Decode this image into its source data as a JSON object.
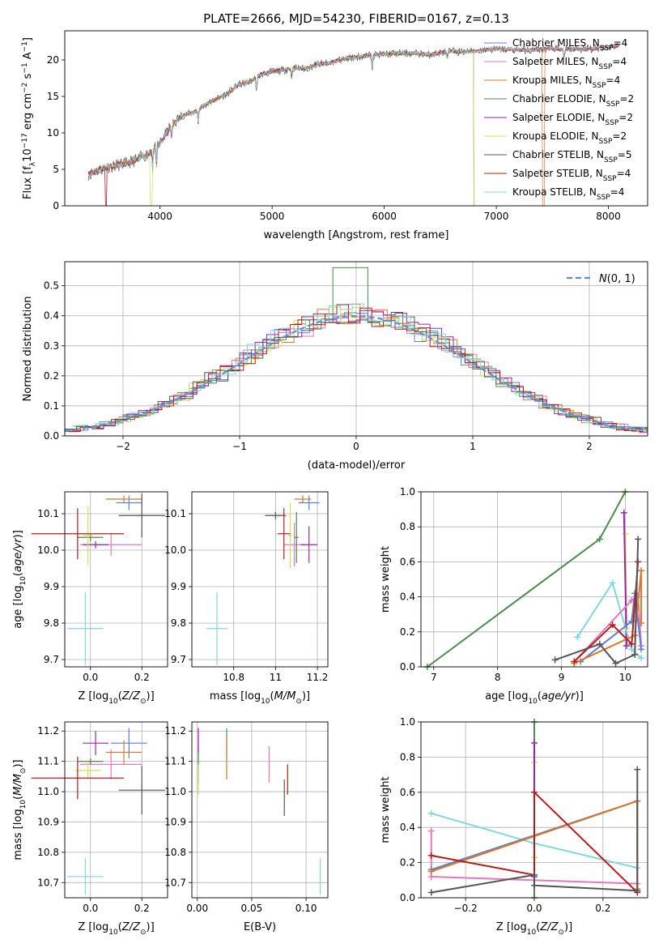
{
  "title": "PLATE=2666, MJD=54230, FIBERID=0167, z=0.13",
  "colors": {
    "chabrier_miles": "#5b7fd6",
    "salpeter_miles": "#e377c2",
    "kroupa_miles": "#d9782d",
    "chabrier_elodie": "#4e8a4e",
    "salpeter_elodie": "#9b27b0",
    "kroupa_elodie": "#d4e157",
    "chabrier_stelib": "#555555",
    "salpeter_stelib": "#b71c1c",
    "kroupa_stelib": "#7fd8e0",
    "normal": "#5b8fd6"
  },
  "chart_data": [
    {
      "id": "spectrum",
      "type": "line",
      "title": "PLATE=2666, MJD=54230, FIBERID=0167, z=0.13",
      "xlabel": "wavelength [Angstrom, rest frame]",
      "ylabel": "Flux [f_λ 10^-17 erg cm^-2 s^-1 A^-1]",
      "xlim": [
        3150,
        8350
      ],
      "ylim": [
        0,
        24
      ],
      "xticks": [
        4000,
        5000,
        6000,
        7000,
        8000
      ],
      "yticks": [
        0,
        5,
        10,
        15,
        20
      ],
      "legend_location": "right",
      "legend": [
        {
          "label": "Chabrier MILES, N",
          "sub": "SSP",
          "suffix": "=4",
          "color": "chabrier_miles"
        },
        {
          "label": "Salpeter MILES, N",
          "sub": "SSP",
          "suffix": "=4",
          "color": "salpeter_miles"
        },
        {
          "label": "Kroupa MILES, N",
          "sub": "SSP",
          "suffix": "=4",
          "color": "kroupa_miles"
        },
        {
          "label": "Chabrier ELODIE, N",
          "sub": "SSP",
          "suffix": "=2",
          "color": "chabrier_elodie"
        },
        {
          "label": "Salpeter ELODIE, N",
          "sub": "SSP",
          "suffix": "=2",
          "color": "salpeter_elodie"
        },
        {
          "label": "Kroupa ELODIE, N",
          "sub": "SSP",
          "suffix": "=2",
          "color": "kroupa_elodie"
        },
        {
          "label": "Chabrier STELIB, N",
          "sub": "SSP",
          "suffix": "=5",
          "color": "chabrier_stelib"
        },
        {
          "label": "Salpeter STELIB, N",
          "sub": "SSP",
          "suffix": "=4",
          "color": "salpeter_stelib"
        },
        {
          "label": "Kroupa STELIB, N",
          "sub": "SSP",
          "suffix": "=4",
          "color": "kroupa_stelib"
        }
      ],
      "continuum": [
        [
          3360,
          4.3
        ],
        [
          3500,
          5.2
        ],
        [
          3600,
          5.5
        ],
        [
          3700,
          5.8
        ],
        [
          3800,
          6.4
        ],
        [
          3900,
          7.2
        ],
        [
          4000,
          8.6
        ],
        [
          4100,
          11.0
        ],
        [
          4200,
          12.4
        ],
        [
          4300,
          12.8
        ],
        [
          4400,
          13.8
        ],
        [
          4500,
          14.6
        ],
        [
          4600,
          15.4
        ],
        [
          4700,
          16.6
        ],
        [
          4800,
          17.0
        ],
        [
          4900,
          18.0
        ],
        [
          5000,
          18.4
        ],
        [
          5100,
          18.6
        ],
        [
          5200,
          18.9
        ],
        [
          5300,
          18.8
        ],
        [
          5400,
          19.4
        ],
        [
          5500,
          19.5
        ],
        [
          5600,
          20.0
        ],
        [
          5700,
          20.3
        ],
        [
          5800,
          20.5
        ],
        [
          5900,
          20.7
        ],
        [
          6000,
          20.8
        ],
        [
          6100,
          20.9
        ],
        [
          6200,
          20.9
        ],
        [
          6300,
          20.9
        ],
        [
          6400,
          20.7
        ],
        [
          6500,
          21.0
        ],
        [
          6600,
          21.2
        ],
        [
          6700,
          21.1
        ],
        [
          6800,
          21.2
        ],
        [
          6900,
          21.4
        ],
        [
          7000,
          21.5
        ],
        [
          7100,
          21.4
        ],
        [
          7200,
          21.4
        ],
        [
          7300,
          21.3
        ],
        [
          7400,
          21.5
        ],
        [
          7500,
          21.6
        ],
        [
          7600,
          21.4
        ],
        [
          7700,
          21.5
        ],
        [
          7800,
          21.4
        ],
        [
          7900,
          21.6
        ],
        [
          8000,
          21.8
        ],
        [
          8100,
          22.0
        ]
      ],
      "truncations": {
        "salpeter_miles": 3520,
        "kroupa_miles": 7420,
        "kroupa_elodie": 3920,
        "salpeter_stelib": 3520
      }
    },
    {
      "id": "residuals",
      "type": "histogram",
      "xlabel": "(data-model)/error",
      "ylabel": "Normed distribution",
      "xlim": [
        -2.5,
        2.5
      ],
      "ylim": [
        0,
        0.58
      ],
      "xticks": [
        -2,
        -1,
        0,
        1,
        2
      ],
      "yticks": [
        0.0,
        0.1,
        0.2,
        0.3,
        0.4,
        0.5
      ],
      "grid": true,
      "legend": [
        {
          "label": "N(0, 1)",
          "color": "normal",
          "style": "dashed"
        }
      ],
      "legend_location": "top-right",
      "normal_curve": {
        "mean": 0,
        "sigma": 1
      }
    },
    {
      "id": "age_vs_z",
      "type": "errorbar",
      "xlabel": "Z [log10(Z/Z⊙)]",
      "ylabel": "age [log10(age/yr)]",
      "xlim": [
        -0.1,
        0.3
      ],
      "ylim": [
        9.68,
        10.16
      ],
      "xticks": [
        0.0,
        0.2
      ],
      "xtick_labels": [
        "0.0",
        "0.2"
      ],
      "yticks": [
        9.7,
        9.8,
        9.9,
        10.0,
        10.1
      ],
      "points": [
        {
          "s": "chabrier_miles",
          "x": 0.15,
          "y": 10.13,
          "ex": 0.05,
          "ey": 0.02
        },
        {
          "s": "salpeter_miles",
          "x": 0.08,
          "y": 10.015,
          "ex": 0.12,
          "ey": 0.03
        },
        {
          "s": "kroupa_miles",
          "x": 0.13,
          "y": 10.14,
          "ex": 0.07,
          "ey": 0.01
        },
        {
          "s": "chabrier_elodie",
          "x": 0.0,
          "y": 10.035,
          "ex": 0.05,
          "ey": 0.01
        },
        {
          "s": "salpeter_elodie",
          "x": 0.02,
          "y": 10.015,
          "ex": 0.05,
          "ey": 0.01
        },
        {
          "s": "kroupa_elodie",
          "x": -0.01,
          "y": 10.04,
          "ex": 0.02,
          "ey": 0.08
        },
        {
          "s": "chabrier_stelib",
          "x": 0.2,
          "y": 10.095,
          "ex": 0.09,
          "ey": 0.06
        },
        {
          "s": "salpeter_stelib",
          "x": -0.05,
          "y": 10.045,
          "ex": 0.18,
          "ey": 0.07
        },
        {
          "s": "kroupa_stelib",
          "x": -0.02,
          "y": 9.785,
          "ex": 0.07,
          "ey": 0.1
        }
      ]
    },
    {
      "id": "age_vs_mass",
      "type": "errorbar",
      "xlabel": "mass [log10(M/M⊙)]",
      "ylabel": "",
      "xlim": [
        10.6,
        11.25
      ],
      "ylim": [
        9.68,
        10.16
      ],
      "xticks": [
        10.8,
        11.0,
        11.2
      ],
      "yticks": [
        9.7,
        9.8,
        9.9,
        10.0,
        10.1
      ],
      "points": [
        {
          "s": "chabrier_miles",
          "x": 11.16,
          "y": 10.13,
          "ex": 0.05,
          "ey": 0.02
        },
        {
          "s": "salpeter_miles",
          "x": 11.09,
          "y": 10.015,
          "ex": 0.05,
          "ey": 0.06
        },
        {
          "s": "kroupa_miles",
          "x": 11.13,
          "y": 10.14,
          "ex": 0.04,
          "ey": 0.01
        },
        {
          "s": "chabrier_elodie",
          "x": 11.1,
          "y": 10.035,
          "ex": 0.01,
          "ey": 0.07
        },
        {
          "s": "salpeter_elodie",
          "x": 11.16,
          "y": 10.015,
          "ex": 0.04,
          "ey": 0.05
        },
        {
          "s": "kroupa_elodie",
          "x": 11.07,
          "y": 10.04,
          "ex": 0.01,
          "ey": 0.09
        },
        {
          "s": "chabrier_stelib",
          "x": 11.0,
          "y": 10.095,
          "ex": 0.05,
          "ey": 0.01
        },
        {
          "s": "salpeter_stelib",
          "x": 11.04,
          "y": 10.045,
          "ex": 0.03,
          "ey": 0.07
        },
        {
          "s": "kroupa_stelib",
          "x": 10.72,
          "y": 9.785,
          "ex": 0.05,
          "ey": 0.1
        }
      ]
    },
    {
      "id": "mass_weight_vs_age",
      "type": "line",
      "xlabel": "age [log10(age/yr)]",
      "ylabel": "mass weight",
      "xlim": [
        6.8,
        10.35
      ],
      "ylim": [
        0,
        1
      ],
      "xticks": [
        7,
        8,
        9,
        10
      ],
      "yticks": [
        0.0,
        0.2,
        0.4,
        0.6,
        0.8,
        1.0
      ],
      "series": [
        {
          "s": "chabrier_elodie",
          "x": [
            6.9,
            9.6,
            10.0
          ],
          "y": [
            0.0,
            0.73,
            1.0
          ],
          "w": 2
        },
        {
          "s": "kroupa_elodie",
          "x": [
            10.0,
            10.02
          ],
          "y": [
            0.76,
            0.22
          ],
          "w": 2
        },
        {
          "s": "salpeter_elodie",
          "x": [
            9.98,
            10.02
          ],
          "y": [
            0.88,
            0.12
          ],
          "w": 2
        },
        {
          "s": "kroupa_stelib",
          "x": [
            9.25,
            9.8,
            10.1,
            10.25
          ],
          "y": [
            0.17,
            0.48,
            0.1,
            0.05
          ],
          "w": 2
        },
        {
          "s": "salpeter_miles",
          "x": [
            9.2,
            10.1,
            10.2,
            10.25
          ],
          "y": [
            0.03,
            0.38,
            0.4,
            0.12
          ],
          "w": 2
        },
        {
          "s": "chabrier_miles",
          "x": [
            9.3,
            10.1,
            10.15,
            10.25
          ],
          "y": [
            0.03,
            0.26,
            0.42,
            0.1
          ],
          "w": 2
        },
        {
          "s": "kroupa_miles",
          "x": [
            9.2,
            10.15,
            10.25,
            10.25
          ],
          "y": [
            0.02,
            0.18,
            0.55,
            0.25
          ],
          "w": 2
        },
        {
          "s": "salpeter_stelib",
          "x": [
            9.2,
            9.8,
            10.1,
            10.2
          ],
          "y": [
            0.03,
            0.24,
            0.13,
            0.6
          ],
          "w": 2
        },
        {
          "s": "chabrier_stelib",
          "x": [
            8.9,
            9.6,
            9.85,
            10.15,
            10.2
          ],
          "y": [
            0.04,
            0.13,
            0.02,
            0.07,
            0.73
          ],
          "w": 2
        }
      ]
    },
    {
      "id": "mass_vs_z",
      "type": "errorbar",
      "xlabel": "Z [log10(Z/Z⊙)]",
      "ylabel": "mass [log10(M/M⊙)]",
      "xlim": [
        -0.1,
        0.3
      ],
      "ylim": [
        10.65,
        11.23
      ],
      "xticks": [
        0.0,
        0.2
      ],
      "xtick_labels": [
        "0.0",
        "0.2"
      ],
      "yticks": [
        10.7,
        10.8,
        10.9,
        11.0,
        11.1,
        11.2
      ],
      "points": [
        {
          "s": "chabrier_miles",
          "x": 0.15,
          "y": 11.16,
          "ex": 0.07,
          "ey": 0.05
        },
        {
          "s": "salpeter_miles",
          "x": 0.08,
          "y": 11.09,
          "ex": 0.12,
          "ey": 0.05
        },
        {
          "s": "kroupa_miles",
          "x": 0.13,
          "y": 11.13,
          "ex": 0.07,
          "ey": 0.04
        },
        {
          "s": "chabrier_elodie",
          "x": 0.0,
          "y": 11.1,
          "ex": 0.05,
          "ey": 0.01
        },
        {
          "s": "salpeter_elodie",
          "x": 0.02,
          "y": 11.16,
          "ex": 0.05,
          "ey": 0.04
        },
        {
          "s": "kroupa_elodie",
          "x": -0.01,
          "y": 11.07,
          "ex": 0.05,
          "ey": 0.03
        },
        {
          "s": "chabrier_stelib",
          "x": 0.2,
          "y": 11.005,
          "ex": 0.09,
          "ey": 0.08
        },
        {
          "s": "salpeter_stelib",
          "x": -0.05,
          "y": 11.045,
          "ex": 0.18,
          "ey": 0.07
        },
        {
          "s": "kroupa_stelib",
          "x": -0.02,
          "y": 10.72,
          "ex": 0.07,
          "ey": 0.06
        }
      ]
    },
    {
      "id": "mass_vs_ebv",
      "type": "errorbar",
      "xlabel": "E(B-V)",
      "ylabel": "",
      "xlim": [
        -0.005,
        0.12
      ],
      "ylim": [
        10.65,
        11.23
      ],
      "xticks": [
        0.0,
        0.05,
        0.1
      ],
      "xtick_labels": [
        "0.00",
        "0.05",
        "0.10"
      ],
      "yticks": [
        10.7,
        10.8,
        10.9,
        11.0,
        11.1,
        11.2
      ],
      "points": [
        {
          "s": "chabrier_miles",
          "x": 0.027,
          "y": 11.16,
          "ex": 0,
          "ey": 0.05
        },
        {
          "s": "salpeter_miles",
          "x": 0.066,
          "y": 11.09,
          "ex": 0,
          "ey": 0.06
        },
        {
          "s": "kroupa_miles",
          "x": 0.027,
          "y": 11.11,
          "ex": 0,
          "ey": 0.07
        },
        {
          "s": "chabrier_elodie",
          "x": 0.001,
          "y": 11.09,
          "ex": 0,
          "ey": 0.06
        },
        {
          "s": "salpeter_elodie",
          "x": 0.001,
          "y": 11.17,
          "ex": 0,
          "ey": 0.04
        },
        {
          "s": "kroupa_elodie",
          "x": 0.001,
          "y": 11.04,
          "ex": 0,
          "ey": 0.05
        },
        {
          "s": "chabrier_stelib",
          "x": 0.08,
          "y": 10.98,
          "ex": 0,
          "ey": 0.06
        },
        {
          "s": "salpeter_stelib",
          "x": 0.083,
          "y": 11.04,
          "ex": 0,
          "ey": 0.05
        },
        {
          "s": "kroupa_stelib",
          "x": 0.113,
          "y": 10.72,
          "ex": 0,
          "ey": 0.06
        }
      ]
    },
    {
      "id": "mass_weight_vs_z",
      "type": "line",
      "xlabel": "Z [log10(Z/Z⊙)]",
      "ylabel": "mass weight",
      "xlim": [
        -0.33,
        0.33
      ],
      "ylim": [
        0,
        1
      ],
      "xticks": [
        -0.2,
        0.0,
        0.2
      ],
      "xtick_labels": [
        "−0.2",
        "0.0",
        "0.2"
      ],
      "yticks": [
        0.0,
        0.2,
        0.4,
        0.6,
        0.8,
        1.0
      ],
      "series": [
        {
          "s": "chabrier_elodie",
          "x": [
            0.0,
            0.0
          ],
          "y": [
            1.0,
            0.0
          ],
          "w": 2
        },
        {
          "s": "kroupa_elodie",
          "x": [
            0.0,
            0.0
          ],
          "y": [
            0.77,
            0.23
          ],
          "w": 2
        },
        {
          "s": "salpeter_elodie",
          "x": [
            0.0,
            0.0
          ],
          "y": [
            0.88,
            0.12
          ],
          "w": 2
        },
        {
          "s": "kroupa_stelib",
          "x": [
            -0.3,
            0.0,
            0.3
          ],
          "y": [
            0.48,
            0.31,
            0.17
          ],
          "w": 2
        },
        {
          "s": "salpeter_miles",
          "x": [
            -0.3,
            -0.3,
            0.3
          ],
          "y": [
            0.38,
            0.12,
            0.08
          ],
          "w": 2
        },
        {
          "s": "chabrier_miles",
          "x": [
            -0.3,
            0.3,
            0.3
          ],
          "y": [
            0.16,
            0.55,
            0.04
          ],
          "w": 2
        },
        {
          "s": "kroupa_miles",
          "x": [
            -0.3,
            0.3,
            0.3
          ],
          "y": [
            0.15,
            0.55,
            0.05
          ],
          "w": 2
        },
        {
          "s": "salpeter_stelib",
          "x": [
            -0.3,
            0.0,
            0.0,
            0.3
          ],
          "y": [
            0.24,
            0.13,
            0.6,
            0.03
          ],
          "w": 2
        },
        {
          "s": "chabrier_stelib",
          "x": [
            -0.3,
            0.0,
            0.0,
            0.3,
            0.3
          ],
          "y": [
            0.03,
            0.13,
            0.07,
            0.04,
            0.73
          ],
          "w": 2
        }
      ]
    }
  ]
}
